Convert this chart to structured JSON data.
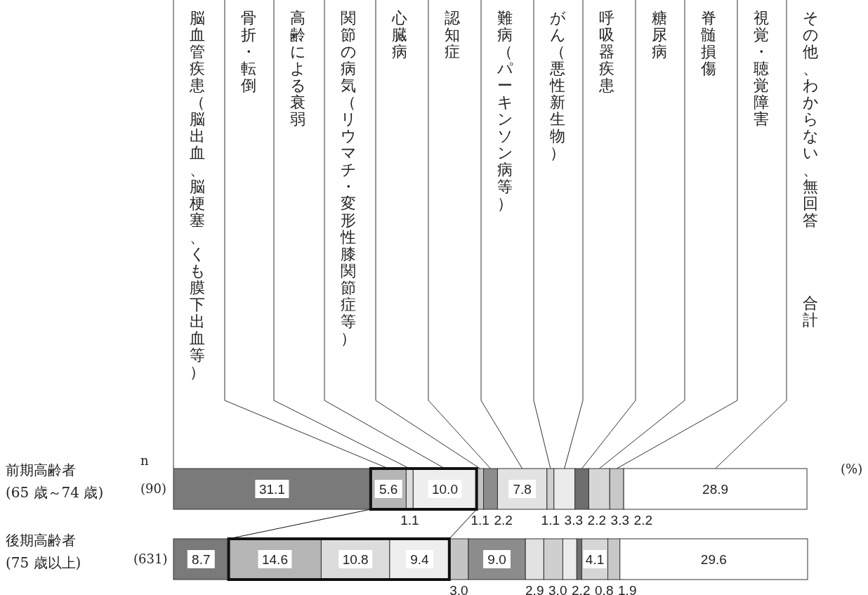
{
  "chart_data": {
    "type": "bar",
    "orientation": "horizontal",
    "stacked": true,
    "categories": [
      "前期高齢者\n(65 歳～74 歳)",
      "後期高齢者\n(75 歳以上)"
    ],
    "series": [
      {
        "name": "脳血管疾患（脳出血、脳梗塞、くも膜下出血等）",
        "color": "#7a7a7a",
        "values": [
          31.1,
          8.7
        ],
        "value_labels": [
          "31.1",
          "8.7"
        ]
      },
      {
        "name": "骨折・転倒",
        "color": "#b5b5b5",
        "values": [
          5.6,
          14.6
        ],
        "value_labels": [
          "5.6",
          "14.6"
        ]
      },
      {
        "name": "高齢による衰弱",
        "color": "#dcdcdc",
        "values": [
          1.1,
          10.8
        ],
        "value_labels": [
          "1.1",
          "10.8"
        ]
      },
      {
        "name": "関節の病気（リウマチ・変形性膝関節症等）",
        "color": "#eeeeee",
        "values": [
          10.0,
          9.4
        ],
        "value_labels": [
          "10.0",
          "9.4"
        ]
      },
      {
        "name": "心臓病",
        "color": "#c4c4c4",
        "values": [
          1.1,
          3.0
        ],
        "value_labels": [
          "1.1",
          "3.0"
        ]
      },
      {
        "name": "認知症",
        "color": "#8c8c8c",
        "values": [
          2.2,
          9.0
        ],
        "value_labels": [
          "2.2",
          "9.0"
        ]
      },
      {
        "name": "難病（パーキンソン病等）",
        "color": "#e2e2e2",
        "values": [
          7.8,
          2.9
        ],
        "value_labels": [
          "7.8",
          "2.9"
        ]
      },
      {
        "name": "がん（悪性新生物）",
        "color": "#cfcfcf",
        "values": [
          1.1,
          3.0
        ],
        "value_labels": [
          "1.1",
          "3.0"
        ]
      },
      {
        "name": "呼吸器疾患",
        "color": "#ebebeb",
        "values": [
          3.3,
          2.2
        ],
        "value_labels": [
          "3.3",
          "2.2"
        ]
      },
      {
        "name": "糖尿病",
        "color": "#6e6e6e",
        "values": [
          2.2,
          0.8
        ],
        "value_labels": [
          "2.2",
          "0.8"
        ]
      },
      {
        "name": "脊髄損傷",
        "color": "#d6d6d6",
        "values": [
          3.3,
          4.1
        ],
        "value_labels": [
          "3.3",
          "4.1"
        ]
      },
      {
        "name": "視覚・聴覚障害",
        "color": "#c8c8c8",
        "values": [
          2.2,
          1.9
        ],
        "value_labels": [
          "2.2",
          "1.9"
        ]
      },
      {
        "name": "その他、わからない、無回答",
        "color": "#ffffff",
        "values": [
          28.9,
          29.6
        ],
        "value_labels": [
          "28.9",
          "29.6"
        ]
      }
    ],
    "annotations": [
      "n",
      "(90)",
      "(631)",
      "(%)",
      "合計"
    ]
  }
}
